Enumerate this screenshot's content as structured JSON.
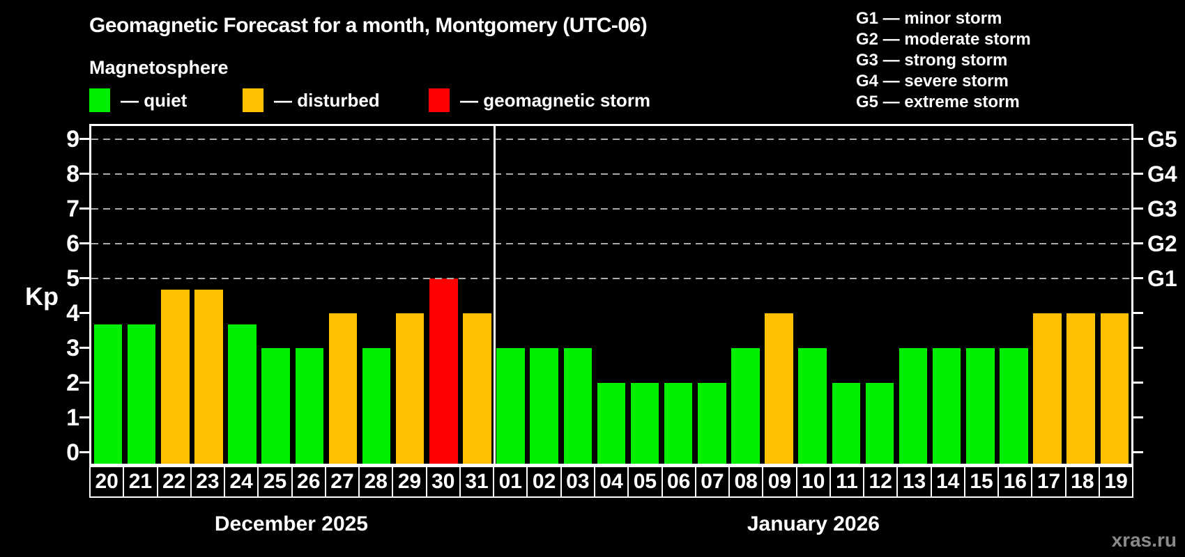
{
  "header": {
    "title": "Geomagnetic Forecast for a month, Montgomery (UTC-06)",
    "subtitle": "Magnetosphere"
  },
  "legend": {
    "items": [
      {
        "name": "quiet",
        "label": "— quiet",
        "color": "#00ee00"
      },
      {
        "name": "disturbed",
        "label": "— disturbed",
        "color": "#ffc000"
      },
      {
        "name": "storm",
        "label": "— geomagnetic storm",
        "color": "#ff0000"
      }
    ]
  },
  "g_legend": [
    "G1 — minor storm",
    "G2 — moderate storm",
    "G3 — strong storm",
    "G4 — severe storm",
    "G5 — extreme storm"
  ],
  "watermark": "xras.ru",
  "chart_data": {
    "type": "bar",
    "title": "Geomagnetic Forecast for a month, Montgomery (UTC-06)",
    "subtitle": "Magnetosphere",
    "ylabel": "Kp",
    "ylim": [
      0,
      9
    ],
    "axis_range": [
      -0.33,
      9.37
    ],
    "yticks": [
      0,
      1,
      2,
      3,
      4,
      5,
      6,
      7,
      8,
      9
    ],
    "gridlines_at": [
      5,
      6,
      7,
      8,
      9
    ],
    "grid": true,
    "legend_position": "top-left",
    "colors": {
      "quiet": "#00ee00",
      "disturbed": "#ffc000",
      "storm": "#ff0000"
    },
    "g_levels": [
      {
        "label": "G5",
        "kp": 9
      },
      {
        "label": "G4",
        "kp": 8
      },
      {
        "label": "G3",
        "kp": 7
      },
      {
        "label": "G2",
        "kp": 6
      },
      {
        "label": "G1",
        "kp": 5
      }
    ],
    "months": [
      {
        "label": "December 2025",
        "days": [
          {
            "day": "20",
            "kp": 3.67,
            "condition": "quiet"
          },
          {
            "day": "21",
            "kp": 3.67,
            "condition": "quiet"
          },
          {
            "day": "22",
            "kp": 4.67,
            "condition": "disturbed"
          },
          {
            "day": "23",
            "kp": 4.67,
            "condition": "disturbed"
          },
          {
            "day": "24",
            "kp": 3.67,
            "condition": "quiet"
          },
          {
            "day": "25",
            "kp": 3,
            "condition": "quiet"
          },
          {
            "day": "26",
            "kp": 3,
            "condition": "quiet"
          },
          {
            "day": "27",
            "kp": 4,
            "condition": "disturbed"
          },
          {
            "day": "28",
            "kp": 3,
            "condition": "quiet"
          },
          {
            "day": "29",
            "kp": 4,
            "condition": "disturbed"
          },
          {
            "day": "30",
            "kp": 5,
            "condition": "storm"
          },
          {
            "day": "31",
            "kp": 4,
            "condition": "disturbed"
          }
        ]
      },
      {
        "label": "January 2026",
        "days": [
          {
            "day": "01",
            "kp": 3,
            "condition": "quiet"
          },
          {
            "day": "02",
            "kp": 3,
            "condition": "quiet"
          },
          {
            "day": "03",
            "kp": 3,
            "condition": "quiet"
          },
          {
            "day": "04",
            "kp": 2,
            "condition": "quiet"
          },
          {
            "day": "05",
            "kp": 2,
            "condition": "quiet"
          },
          {
            "day": "06",
            "kp": 2,
            "condition": "quiet"
          },
          {
            "day": "07",
            "kp": 2,
            "condition": "quiet"
          },
          {
            "day": "08",
            "kp": 3,
            "condition": "quiet"
          },
          {
            "day": "09",
            "kp": 4,
            "condition": "disturbed"
          },
          {
            "day": "10",
            "kp": 3,
            "condition": "quiet"
          },
          {
            "day": "11",
            "kp": 2,
            "condition": "quiet"
          },
          {
            "day": "12",
            "kp": 2,
            "condition": "quiet"
          },
          {
            "day": "13",
            "kp": 3,
            "condition": "quiet"
          },
          {
            "day": "14",
            "kp": 3,
            "condition": "quiet"
          },
          {
            "day": "15",
            "kp": 3,
            "condition": "quiet"
          },
          {
            "day": "16",
            "kp": 3,
            "condition": "quiet"
          },
          {
            "day": "17",
            "kp": 4,
            "condition": "disturbed"
          },
          {
            "day": "18",
            "kp": 4,
            "condition": "disturbed"
          },
          {
            "day": "19",
            "kp": 4,
            "condition": "disturbed"
          }
        ]
      }
    ]
  }
}
